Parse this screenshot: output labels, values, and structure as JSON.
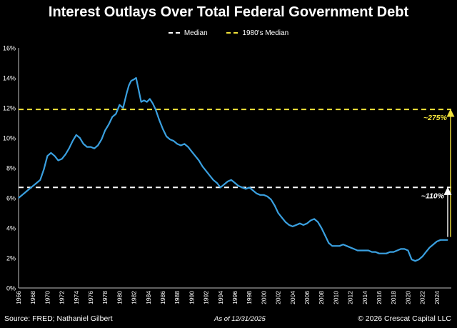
{
  "title": "Interest Outlays Over Total Federal Government Debt",
  "legend": {
    "median": "Median",
    "eighties_median": "1980's Median"
  },
  "annotations": {
    "upper": "~275%",
    "lower": "~110%"
  },
  "footer": {
    "source": "Source: FRED; Nathaniel Gilbert",
    "as_of": "As of 12/31/2025",
    "copyright": "© 2026 Crescat Capital LLC"
  },
  "colors": {
    "background": "#000000",
    "line": "#3aa0e0",
    "median": "#ffffff",
    "eighties_median": "#f2e23a",
    "upper_annotation": "#f2e23a",
    "lower_annotation": "#ffffff",
    "grid": "#333333"
  },
  "chart_data": {
    "type": "line",
    "title": "Interest Outlays Over Total Federal Government Debt",
    "xlabel": "",
    "ylabel": "",
    "xlim": [
      1966,
      2026
    ],
    "ylim": [
      0,
      16
    ],
    "yticks": [
      0,
      2,
      4,
      6,
      8,
      10,
      12,
      14,
      16
    ],
    "ytick_labels": [
      "0%",
      "2%",
      "4%",
      "6%",
      "8%",
      "10%",
      "12%",
      "14%",
      "16%"
    ],
    "xticks": [
      1966,
      1968,
      1970,
      1972,
      1974,
      1976,
      1978,
      1980,
      1982,
      1984,
      1986,
      1988,
      1990,
      1992,
      1994,
      1996,
      1998,
      2000,
      2002,
      2004,
      2006,
      2008,
      2010,
      2012,
      2014,
      2016,
      2018,
      2020,
      2022,
      2024
    ],
    "grid": false,
    "legend_position": "top-center",
    "series": [
      {
        "x": [
          1966,
          1966.5,
          1967,
          1967.5,
          1968,
          1968.5,
          1969,
          1969.5,
          1970,
          1970.5,
          1971,
          1971.5,
          1972,
          1972.5,
          1973,
          1973.5,
          1974,
          1974.5,
          1975,
          1975.5,
          1976,
          1976.5,
          1977,
          1977.5,
          1978,
          1978.5,
          1979,
          1979.5,
          1980,
          1980.5,
          1981,
          1981.3,
          1981.6,
          1982,
          1982.3,
          1982.6,
          1983,
          1983.4,
          1983.8,
          1984.2,
          1984.6,
          1985,
          1985.5,
          1986,
          1986.5,
          1987,
          1987.5,
          1988,
          1988.5,
          1989,
          1989.5,
          1990,
          1990.5,
          1991,
          1991.5,
          1992,
          1992.5,
          1993,
          1993.5,
          1994,
          1994.5,
          1995,
          1995.5,
          1996,
          1996.5,
          1997,
          1997.5,
          1998,
          1998.5,
          1999,
          1999.5,
          2000,
          2000.5,
          2001,
          2001.5,
          2002,
          2002.5,
          2003,
          2003.5,
          2004,
          2004.5,
          2005,
          2005.5,
          2006,
          2006.5,
          2007,
          2007.5,
          2008,
          2008.5,
          2009,
          2009.5,
          2010,
          2010.5,
          2011,
          2011.5,
          2012,
          2012.5,
          2013,
          2013.5,
          2014,
          2014.5,
          2015,
          2015.5,
          2016,
          2016.5,
          2017,
          2017.5,
          2018,
          2018.5,
          2019,
          2019.5,
          2020,
          2020.5,
          2021,
          2021.5,
          2022,
          2022.5,
          2023,
          2023.5,
          2024,
          2024.5,
          2025,
          2025.5
        ],
        "values": [
          6.0,
          6.2,
          6.4,
          6.6,
          6.8,
          7.0,
          7.2,
          7.9,
          8.8,
          9.0,
          8.8,
          8.5,
          8.6,
          8.9,
          9.3,
          9.8,
          10.2,
          10.0,
          9.6,
          9.4,
          9.4,
          9.3,
          9.5,
          9.9,
          10.5,
          10.9,
          11.4,
          11.6,
          12.2,
          12.0,
          13.0,
          13.5,
          13.8,
          13.9,
          14.0,
          13.3,
          12.4,
          12.5,
          12.4,
          12.6,
          12.3,
          11.9,
          11.2,
          10.6,
          10.1,
          9.9,
          9.8,
          9.6,
          9.5,
          9.6,
          9.4,
          9.1,
          8.8,
          8.5,
          8.1,
          7.8,
          7.5,
          7.2,
          7.0,
          6.7,
          6.9,
          7.1,
          7.2,
          7.0,
          6.8,
          6.7,
          6.6,
          6.7,
          6.5,
          6.3,
          6.2,
          6.2,
          6.1,
          5.9,
          5.5,
          5.0,
          4.7,
          4.4,
          4.2,
          4.1,
          4.2,
          4.3,
          4.2,
          4.3,
          4.5,
          4.6,
          4.4,
          4.0,
          3.5,
          3.0,
          2.8,
          2.8,
          2.8,
          2.9,
          2.8,
          2.7,
          2.6,
          2.5,
          2.5,
          2.5,
          2.5,
          2.4,
          2.4,
          2.3,
          2.3,
          2.3,
          2.4,
          2.4,
          2.5,
          2.6,
          2.6,
          2.5,
          1.9,
          1.8,
          1.9,
          2.1,
          2.4,
          2.7,
          2.9,
          3.1,
          3.2,
          3.2,
          3.2
        ]
      }
    ],
    "reference_lines": [
      {
        "name": "Median",
        "y": 6.7,
        "color": "#ffffff"
      },
      {
        "name": "1980's Median",
        "y": 11.9,
        "color": "#f2e23a"
      }
    ],
    "annotations": [
      {
        "text": "~275%",
        "y_from": 3.4,
        "y_to": 11.9,
        "color": "#f2e23a"
      },
      {
        "text": "~110%",
        "y_from": 3.4,
        "y_to": 6.7,
        "color": "#ffffff"
      }
    ]
  }
}
